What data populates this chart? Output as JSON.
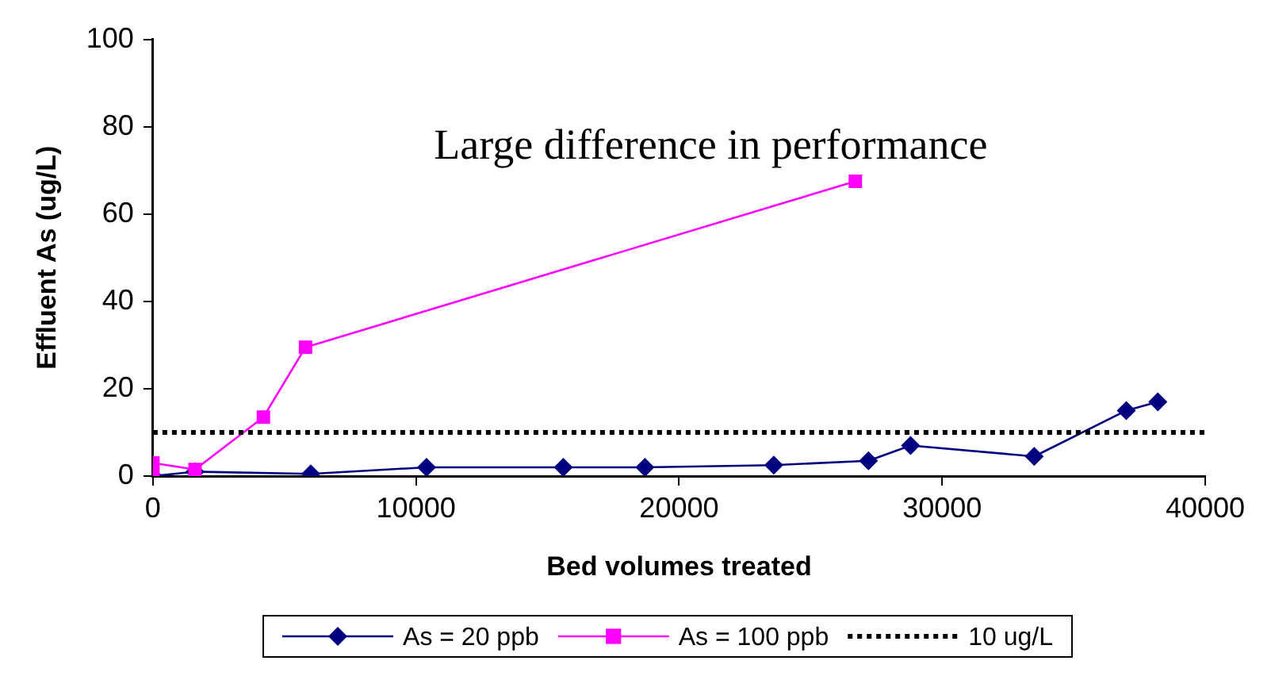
{
  "chart_data": {
    "type": "line",
    "xlabel": "Bed volumes treated",
    "ylabel": "Effluent As (ug/L)",
    "annotations": [
      "Large difference in performance"
    ],
    "series": [
      {
        "name": "As = 20 ppb",
        "color": "#000080",
        "marker": "diamond",
        "x": [
          0,
          1600,
          6000,
          10400,
          15600,
          18700,
          23600,
          27200,
          28800,
          33500,
          37000,
          38200
        ],
        "values": [
          0,
          1,
          0.5,
          2,
          2,
          2,
          2.5,
          3.5,
          7,
          4.5,
          15,
          17
        ]
      },
      {
        "name": "As = 100 ppb",
        "color": "#ff00ff",
        "marker": "square",
        "x": [
          0,
          0,
          1600,
          4200,
          5800,
          26700
        ],
        "values": [
          0,
          3,
          1.5,
          13.5,
          29.5,
          67.5
        ]
      }
    ],
    "ref_lines": [
      {
        "axis": "y",
        "value": 10,
        "label": "10 ug/L",
        "color": "#000000",
        "line_style": "dotted"
      }
    ],
    "xlim": [
      0,
      40000
    ],
    "xticks": [
      0,
      10000,
      20000,
      30000,
      40000
    ],
    "ylim": [
      0,
      100
    ],
    "yticks": [
      0,
      20,
      40,
      60,
      80,
      100
    ],
    "grid": false,
    "legend": "bottom",
    "line_style": "solid"
  }
}
